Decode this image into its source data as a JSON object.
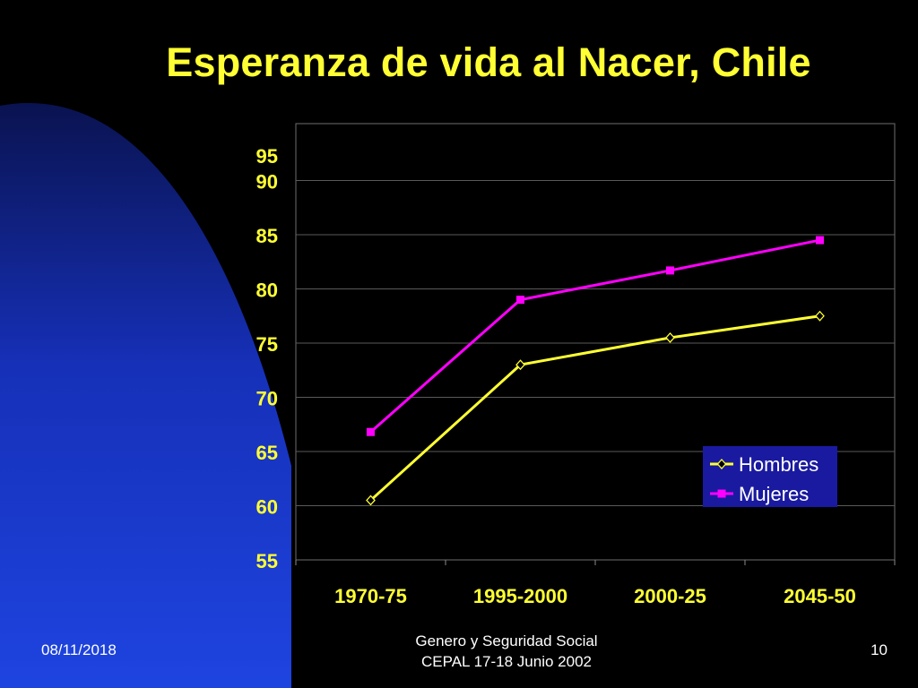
{
  "slide": {
    "title": "Esperanza de vida al Nacer, Chile",
    "footer_date": "08/11/2018",
    "footer_line1": "Genero y Seguridad Social",
    "footer_line2": "CEPAL 17-18 Junio 2002",
    "page_number": "10"
  },
  "colors": {
    "background": "#000000",
    "title": "#ffff33",
    "hombres": "#ffff33",
    "mujeres": "#ff00ff",
    "legend_bg": "#1a1aa0",
    "accent_blue": "#1c3cd8"
  },
  "chart_data": {
    "type": "line",
    "title": "Esperanza de vida al Nacer, Chile",
    "xlabel": "",
    "ylabel": "",
    "categories": [
      "1970-75",
      "1995-2000",
      "2000-25",
      "2045-50"
    ],
    "series": [
      {
        "name": "Hombres",
        "values": [
          60.5,
          73.0,
          75.5,
          77.5
        ],
        "color": "#ffff33",
        "marker": "diamond"
      },
      {
        "name": "Mujeres",
        "values": [
          66.8,
          79.0,
          81.7,
          84.5
        ],
        "color": "#ff00ff",
        "marker": "square"
      }
    ],
    "y_ticks": [
      "55",
      "60",
      "65",
      "70",
      "75",
      "80",
      "85",
      "90",
      "95"
    ],
    "ylim": [
      55,
      95
    ],
    "grid": true,
    "legend_position": "bottom-right"
  }
}
